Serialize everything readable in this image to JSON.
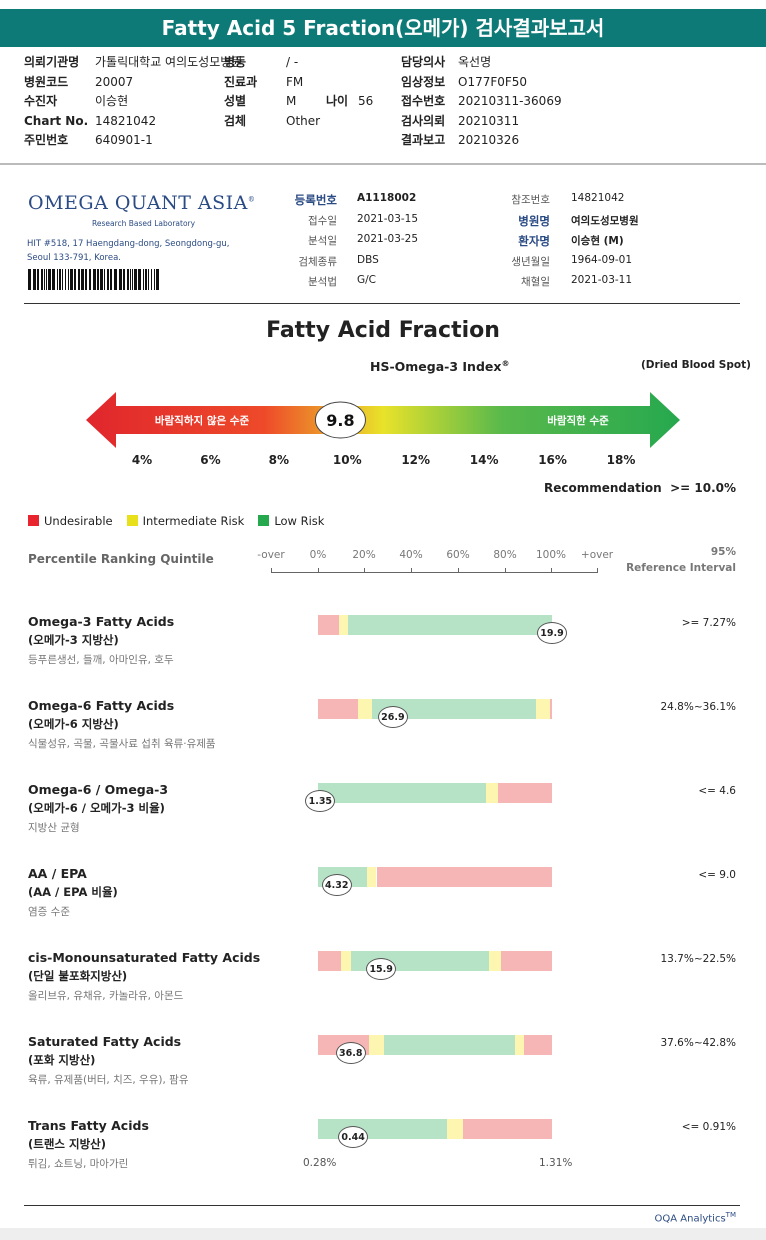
{
  "title": "Fatty Acid 5 Fraction(오메가) 검사결과보고서",
  "header_info": {
    "left": [
      {
        "label": "의뢰기관명",
        "value": "가톨릭대학교 여의도성모병원"
      },
      {
        "label": "병원코드",
        "value": "20007"
      },
      {
        "label": "수진자",
        "value": "이승현"
      },
      {
        "label": "Chart No.",
        "value": "14821042"
      },
      {
        "label": "주민번호",
        "value": "640901-1"
      }
    ],
    "mid": [
      {
        "label": "병동",
        "value": "/ -"
      },
      {
        "label": "진료과",
        "value": "FM"
      },
      {
        "label": "성별",
        "value": "M",
        "label2": "나이",
        "value2": "56"
      },
      {
        "label": "검체",
        "value": "Other"
      }
    ],
    "right": [
      {
        "label": "담당의사",
        "value": "옥선명"
      },
      {
        "label": "임상정보",
        "value": "O177F0F50"
      },
      {
        "label": "접수번호",
        "value": "20210311-36069"
      },
      {
        "label": "검사의뢰",
        "value": "20210311"
      },
      {
        "label": "결과보고",
        "value": "20210326"
      }
    ]
  },
  "lab": {
    "logo": "OMEGA QUANT ASIA",
    "logo_mark": "®",
    "subtitle": "Research Based Laboratory",
    "address_line1": "HIT #518, 17 Haengdang-dong, Seongdong-gu,",
    "address_line2": "Seoul 133-791, Korea."
  },
  "meta_left": [
    {
      "k": "등록번호",
      "v": "A1118002",
      "bold": true
    },
    {
      "k": "접수일",
      "v": "2021-03-15",
      "bold": false
    },
    {
      "k": "분석일",
      "v": "2021-03-25",
      "bold": false
    },
    {
      "k": "검체종류",
      "v": "DBS",
      "bold": false
    },
    {
      "k": "분석법",
      "v": "G/C",
      "bold": false
    }
  ],
  "meta_right": [
    {
      "k": "참조번호",
      "v": "14821042",
      "bold": false
    },
    {
      "k": "병원명",
      "v": "여의도성모병원",
      "bold": true
    },
    {
      "k": "환자명",
      "v": "이승현 (M)",
      "bold": true
    },
    {
      "k": "생년월일",
      "v": "1964-09-01",
      "bold": false
    },
    {
      "k": "채혈일",
      "v": "2021-03-11",
      "bold": false
    }
  ],
  "index_section": {
    "title": "Fatty Acid Fraction",
    "subtitle": "HS-Omega-3 Index",
    "subtitle_mark": "®",
    "note": "(Dried Blood Spot)",
    "left_text": "바람직하지 않은 수준",
    "right_text": "바람직한 수준",
    "value": 9.8,
    "value_label": "9.8",
    "ticks": [
      "4%",
      "6%",
      "8%",
      "10%",
      "12%",
      "14%",
      "16%",
      "18%"
    ],
    "recommendation_label": "Recommendation",
    "recommendation_value": ">= 10.0%"
  },
  "legend": [
    {
      "label": "Undesirable",
      "color": "#e8242e"
    },
    {
      "label": "Intermediate Risk",
      "color": "#e8e01a"
    },
    {
      "label": "Low Risk",
      "color": "#26a84e"
    }
  ],
  "percentile": {
    "label": "Percentile Ranking Quintile",
    "scale": [
      "-over",
      "0%",
      "20%",
      "40%",
      "60%",
      "80%",
      "100%",
      "+over"
    ],
    "ref_header_1": "95%",
    "ref_header_2": "Reference Interval"
  },
  "colors": {
    "red": "#f7b6b6",
    "yellow": "#fcf6b0",
    "green": "#b6e3c6"
  },
  "rows": [
    {
      "name": "Omega-3 Fatty Acids",
      "korean": "(오메가-3 지방산)",
      "sources": "등푸른생선, 들깨, 아마인유, 호두",
      "value_label": "19.9",
      "ref": ">= 7.27%",
      "marker": 1.0,
      "zones": [
        {
          "c": "red",
          "a": 0,
          "b": 0.09
        },
        {
          "c": "yellow",
          "a": 0.09,
          "b": 0.13
        },
        {
          "c": "green",
          "a": 0.13,
          "b": 1.0
        }
      ]
    },
    {
      "name": "Omega-6 Fatty Acids",
      "korean": "(오메가-6 지방산)",
      "sources": "식물성유, 곡물, 곡물사료 섭취 육류·유제품",
      "value_label": "26.9",
      "ref": "24.8%~36.1%",
      "marker": 0.32,
      "zones": [
        {
          "c": "red",
          "a": 0,
          "b": 0.17
        },
        {
          "c": "yellow",
          "a": 0.17,
          "b": 0.23
        },
        {
          "c": "green",
          "a": 0.23,
          "b": 0.93
        },
        {
          "c": "yellow",
          "a": 0.93,
          "b": 0.99
        },
        {
          "c": "red",
          "a": 0.99,
          "b": 1.0
        }
      ]
    },
    {
      "name": "Omega-6 / Omega-3",
      "korean": "(오메가-6 / 오메가-3 비율)",
      "sources": "지방산 균형",
      "value_label": "1.35",
      "ref": "<= 4.6",
      "marker": 0.01,
      "zones": [
        {
          "c": "green",
          "a": 0,
          "b": 0.72
        },
        {
          "c": "yellow",
          "a": 0.72,
          "b": 0.77
        },
        {
          "c": "red",
          "a": 0.77,
          "b": 1.0
        }
      ]
    },
    {
      "name": "AA / EPA",
      "korean": "(AA / EPA 비율)",
      "sources": "염증 수준",
      "value_label": "4.32",
      "ref": "<= 9.0",
      "marker": 0.08,
      "zones": [
        {
          "c": "green",
          "a": 0,
          "b": 0.21
        },
        {
          "c": "yellow",
          "a": 0.21,
          "b": 0.25
        },
        {
          "c": "red",
          "a": 0.25,
          "b": 1.0
        }
      ]
    },
    {
      "name": "cis-Monounsaturated Fatty Acids",
      "korean": "(단일 불포화지방산)",
      "sources": "올리브유, 유채유, 카놀라유, 아몬드",
      "value_label": "15.9",
      "ref": "13.7%~22.5%",
      "marker": 0.27,
      "zones": [
        {
          "c": "red",
          "a": 0,
          "b": 0.1
        },
        {
          "c": "yellow",
          "a": 0.1,
          "b": 0.14
        },
        {
          "c": "green",
          "a": 0.14,
          "b": 0.73
        },
        {
          "c": "yellow",
          "a": 0.73,
          "b": 0.78
        },
        {
          "c": "red",
          "a": 0.78,
          "b": 1.0
        }
      ]
    },
    {
      "name": "Saturated Fatty Acids",
      "korean": "(포화 지방산)",
      "sources": "육류, 유제품(버터, 치즈, 우유), 팜유",
      "value_label": "36.8",
      "ref": "37.6%~42.8%",
      "marker": 0.14,
      "zones": [
        {
          "c": "red",
          "a": 0,
          "b": 0.22
        },
        {
          "c": "yellow",
          "a": 0.22,
          "b": 0.28
        },
        {
          "c": "green",
          "a": 0.28,
          "b": 0.84
        },
        {
          "c": "yellow",
          "a": 0.84,
          "b": 0.88
        },
        {
          "c": "red",
          "a": 0.88,
          "b": 1.0
        }
      ]
    },
    {
      "name": "Trans Fatty Acids",
      "korean": "(트랜스 지방산)",
      "sources": "튀김, 쇼트닝, 마아가린",
      "value_label": "0.44",
      "ref": "<= 0.91%",
      "marker": 0.15,
      "zones": [
        {
          "c": "green",
          "a": 0,
          "b": 0.55
        },
        {
          "c": "yellow",
          "a": 0.55,
          "b": 0.62
        },
        {
          "c": "red",
          "a": 0.62,
          "b": 1.0
        }
      ]
    }
  ],
  "trans_range": {
    "min": "0.28%",
    "max": "1.31%"
  },
  "footer": {
    "brand": "OQA Analytics",
    "mark": "TM"
  }
}
